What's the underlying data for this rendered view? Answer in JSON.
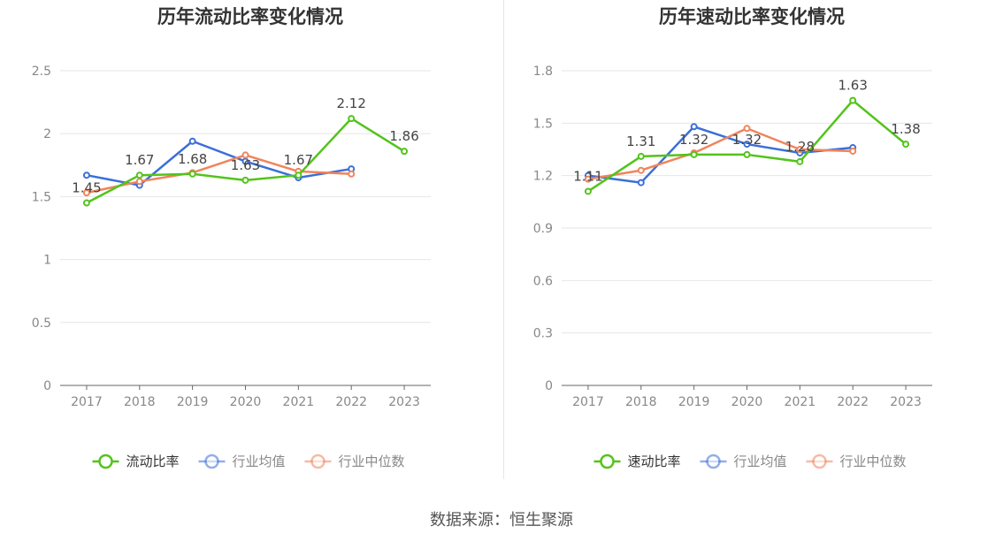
{
  "colors": {
    "main": "#52c41a",
    "avg": "#3b6fd8",
    "median": "#f0845c"
  },
  "charts": [
    {
      "title": "历年流动比率变化情况",
      "chart_data": {
        "type": "line",
        "title": "历年流动比率变化情况",
        "categories": [
          "2017",
          "2018",
          "2019",
          "2020",
          "2021",
          "2022",
          "2023"
        ],
        "ylim": [
          0,
          2.5
        ],
        "yticks": [
          "0",
          "0.5",
          "1",
          "1.5",
          "2",
          "2.5"
        ],
        "grid": true,
        "legend_position": "bottom",
        "series": [
          {
            "name": "流动比率",
            "values": [
              1.45,
              1.67,
              1.68,
              1.63,
              1.67,
              2.12,
              1.86
            ],
            "labels": [
              "1.45",
              "1.67",
              "1.68",
              "1.63",
              "1.67",
              "2.12",
              "1.86"
            ],
            "color": "#52c41a"
          },
          {
            "name": "行业均值",
            "values": [
              1.67,
              1.59,
              1.94,
              1.78,
              1.65,
              1.72,
              null
            ],
            "color": "#3b6fd8"
          },
          {
            "name": "行业中位数",
            "values": [
              1.53,
              1.62,
              1.69,
              1.83,
              1.7,
              1.68,
              null
            ],
            "color": "#f0845c"
          }
        ]
      }
    },
    {
      "title": "历年速动比率变化情况",
      "chart_data": {
        "type": "line",
        "title": "历年速动比率变化情况",
        "categories": [
          "2017",
          "2018",
          "2019",
          "2020",
          "2021",
          "2022",
          "2023"
        ],
        "ylim": [
          0,
          1.8
        ],
        "yticks": [
          "0",
          "0.3",
          "0.6",
          "0.9",
          "1.2",
          "1.5",
          "1.8"
        ],
        "grid": true,
        "legend_position": "bottom",
        "series": [
          {
            "name": "速动比率",
            "values": [
              1.11,
              1.31,
              1.32,
              1.32,
              1.28,
              1.63,
              1.38
            ],
            "labels": [
              "1.11",
              "1.31",
              "1.32",
              "1.32",
              "1.28",
              "1.63",
              "1.38"
            ],
            "color": "#52c41a"
          },
          {
            "name": "行业均值",
            "values": [
              1.2,
              1.16,
              1.48,
              1.38,
              1.33,
              1.36,
              null
            ],
            "color": "#3b6fd8"
          },
          {
            "name": "行业中位数",
            "values": [
              1.18,
              1.23,
              1.33,
              1.47,
              1.35,
              1.34,
              null
            ],
            "color": "#f0845c"
          }
        ]
      }
    }
  ],
  "source": "数据来源：恒生聚源"
}
